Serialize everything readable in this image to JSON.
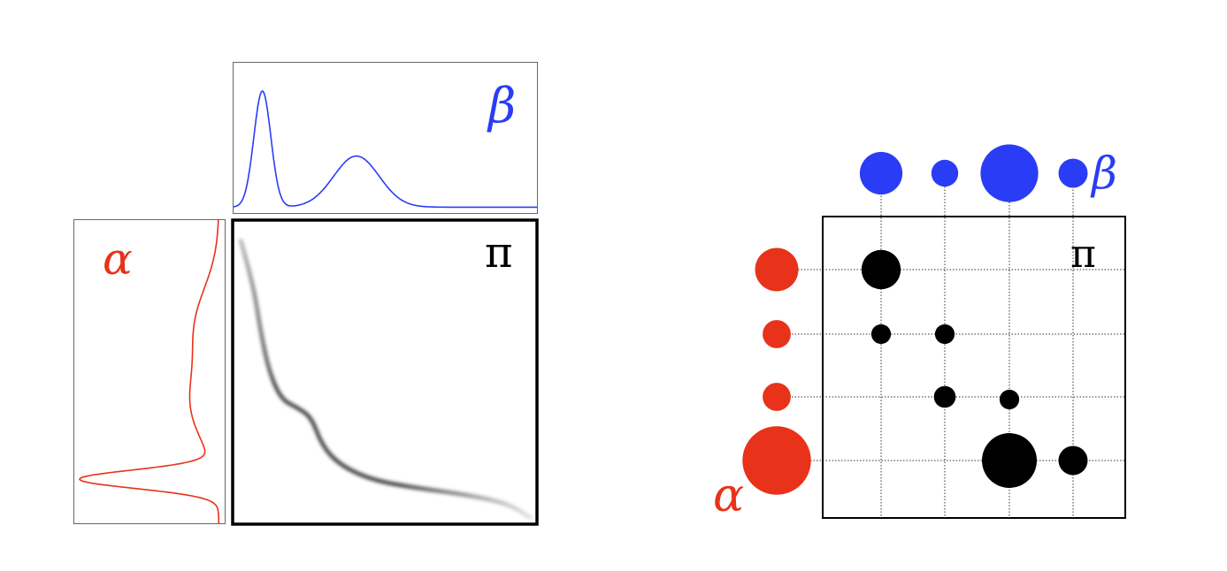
{
  "colors": {
    "alpha": "#e8321a",
    "beta": "#2a3cf5",
    "plan": "#000000",
    "grid": "#333333"
  },
  "continuous": {
    "alpha_label": "α",
    "beta_label": "β",
    "pi_label": "π"
  },
  "discrete": {
    "alpha_label": "α",
    "beta_label": "β",
    "pi_label": "π",
    "alpha_weights": [
      0.26,
      0.11,
      0.11,
      0.65
    ],
    "beta_weights": [
      0.3,
      0.12,
      0.55,
      0.14
    ],
    "plan": [
      {
        "row": 0,
        "col": 0,
        "weight": 0.36
      },
      {
        "row": 1,
        "col": 0,
        "weight": 0.09
      },
      {
        "row": 1,
        "col": 1,
        "weight": 0.09
      },
      {
        "row": 2,
        "col": 1,
        "weight": 0.11
      },
      {
        "row": 2,
        "col": 2,
        "weight": 0.09
      },
      {
        "row": 3,
        "col": 2,
        "weight": 0.7
      },
      {
        "row": 3,
        "col": 3,
        "weight": 0.2
      }
    ]
  }
}
